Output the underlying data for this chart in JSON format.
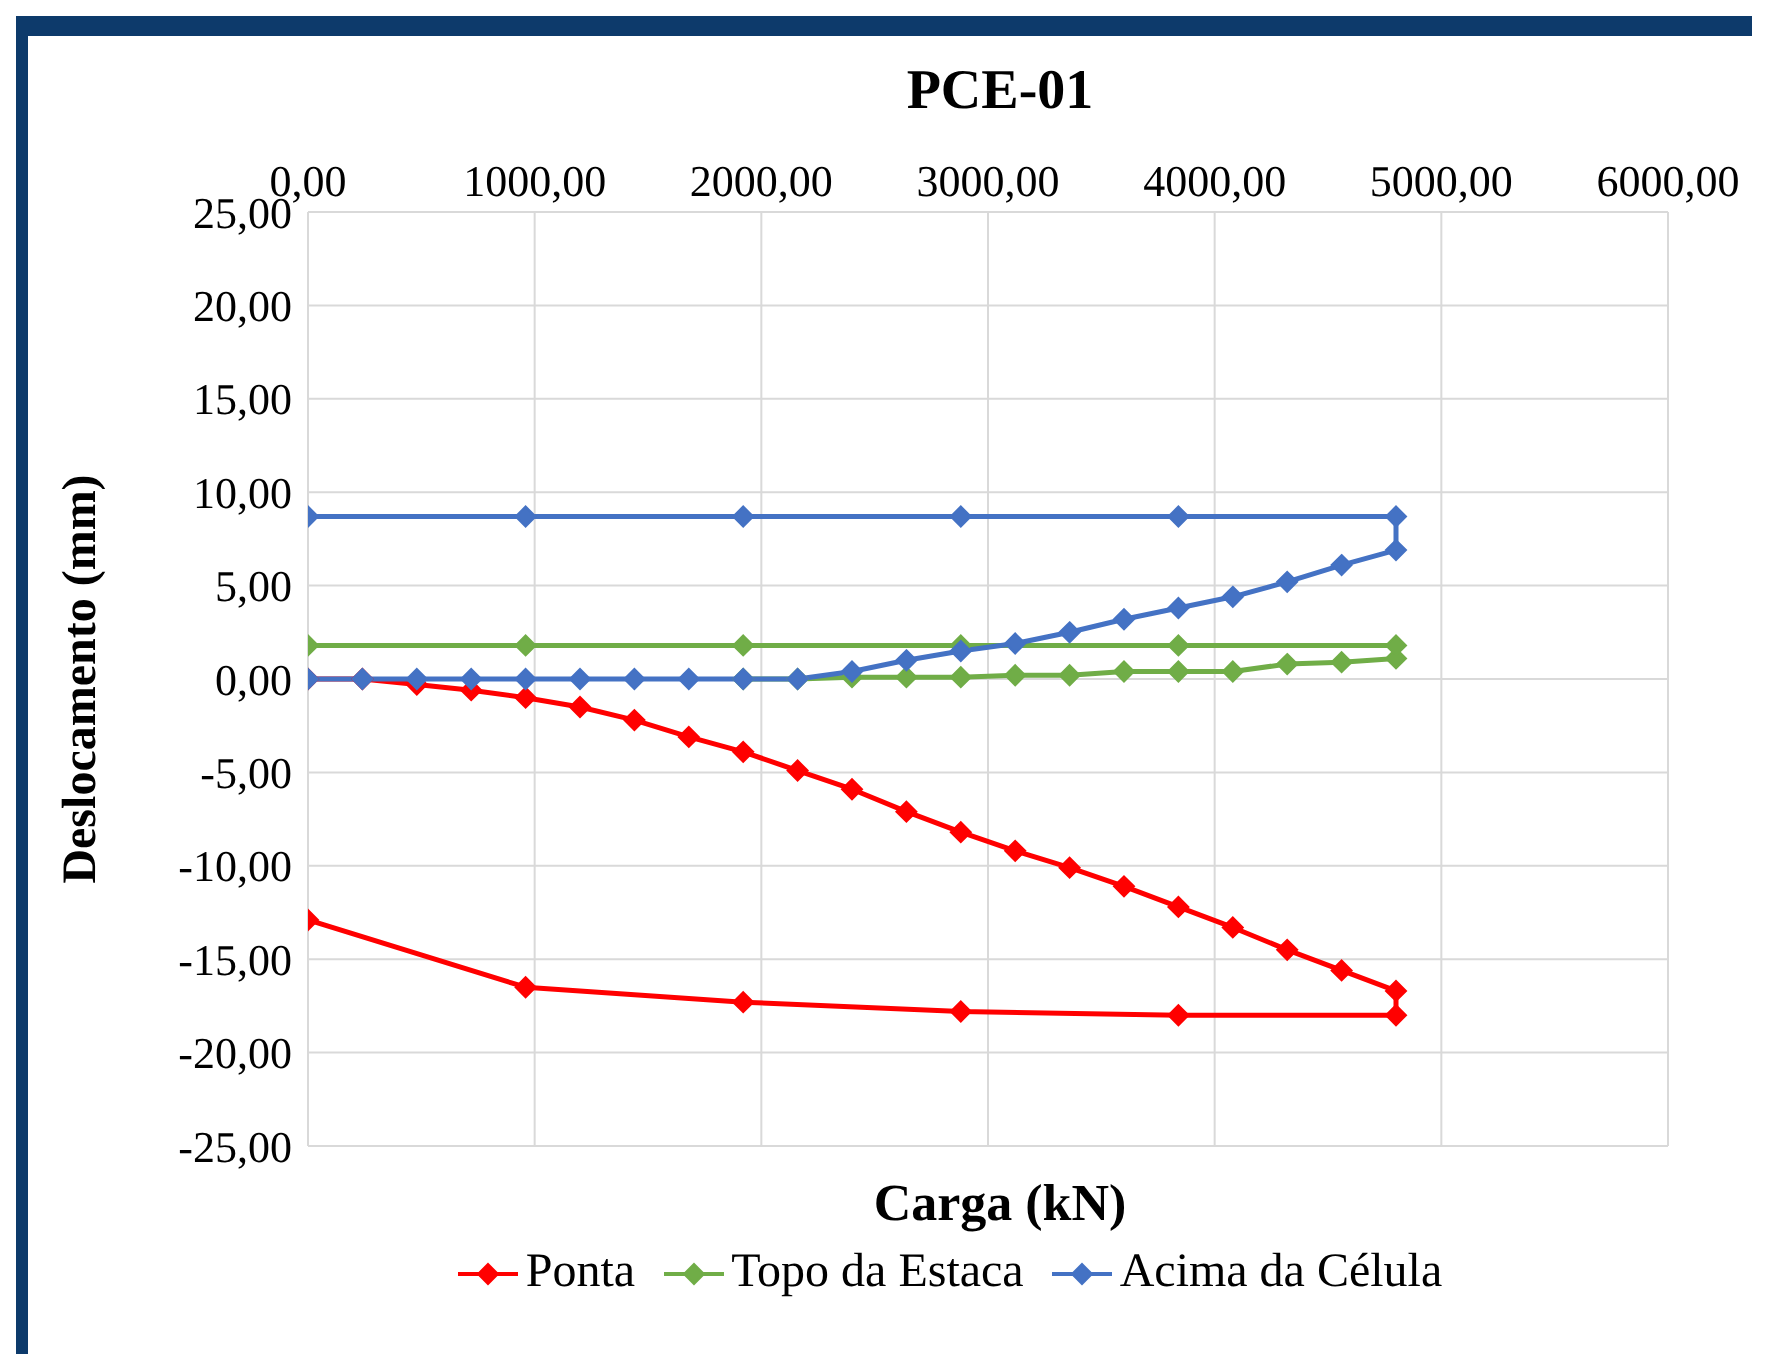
{
  "chart_data": {
    "type": "line",
    "title": "PCE-01",
    "xlabel": "Carga (kN)",
    "ylabel": "Deslocamento (mm)",
    "xlim": [
      0,
      6000
    ],
    "xticks": [
      {
        "value": 0,
        "label": "0,00"
      },
      {
        "value": 1000,
        "label": "1000,00"
      },
      {
        "value": 2000,
        "label": "2000,00"
      },
      {
        "value": 3000,
        "label": "3000,00"
      },
      {
        "value": 4000,
        "label": "4000,00"
      },
      {
        "value": 5000,
        "label": "5000,00"
      },
      {
        "value": 6000,
        "label": "6000,00"
      }
    ],
    "ylim": [
      -25,
      25
    ],
    "yticks": [
      {
        "value": -25,
        "label": "-25,00"
      },
      {
        "value": -20,
        "label": "-20,00"
      },
      {
        "value": -15,
        "label": "-15,00"
      },
      {
        "value": -10,
        "label": "-10,00"
      },
      {
        "value": -5,
        "label": "-5,00"
      },
      {
        "value": 0,
        "label": "0,00"
      },
      {
        "value": 5,
        "label": "5,00"
      },
      {
        "value": 10,
        "label": "10,00"
      },
      {
        "value": 15,
        "label": "15,00"
      },
      {
        "value": 20,
        "label": "20,00"
      },
      {
        "value": 25,
        "label": "25,00"
      }
    ],
    "grid": true,
    "legend": "bottom",
    "marker": "diamond",
    "line_style": "solid",
    "series": [
      {
        "name": "Ponta",
        "color": "#ff0000",
        "x": [
          0,
          240,
          480,
          720,
          960,
          1200,
          1440,
          1680,
          1920,
          2160,
          2400,
          2640,
          2880,
          3120,
          3360,
          3600,
          3840,
          4080,
          4320,
          4560,
          4800,
          4800,
          3840,
          2880,
          1920,
          960,
          0
        ],
        "values": [
          0,
          0,
          -0.3,
          -0.6,
          -1.0,
          -1.5,
          -2.2,
          -3.1,
          -3.9,
          -4.9,
          -5.9,
          -7.1,
          -8.2,
          -9.2,
          -10.1,
          -11.1,
          -12.2,
          -13.3,
          -14.5,
          -15.6,
          -16.7,
          -18.0,
          -18.0,
          -17.8,
          -17.3,
          -16.5,
          -12.9
        ]
      },
      {
        "name": "Topo da Estaca",
        "color": "#70ad47",
        "x": [
          1920,
          2160,
          2400,
          2640,
          2880,
          3120,
          3360,
          3600,
          3840,
          4080,
          4320,
          4560,
          4800,
          4800,
          3840,
          2880,
          1920,
          960,
          0
        ],
        "values": [
          0,
          0,
          0.1,
          0.1,
          0.1,
          0.2,
          0.2,
          0.4,
          0.4,
          0.4,
          0.8,
          0.9,
          1.1,
          1.8,
          1.8,
          1.8,
          1.8,
          1.8,
          1.8
        ]
      },
      {
        "name": "Acima da Célula",
        "color": "#4472c4",
        "x": [
          0,
          240,
          480,
          720,
          960,
          1200,
          1440,
          1680,
          1920,
          2160,
          2400,
          2640,
          2880,
          3120,
          3360,
          3600,
          3840,
          4080,
          4320,
          4560,
          4800,
          4800,
          3840,
          2880,
          1920,
          960,
          0
        ],
        "values": [
          0,
          0,
          0,
          0,
          0,
          0,
          0,
          0,
          0,
          0,
          0.4,
          1.0,
          1.5,
          1.9,
          2.5,
          3.2,
          3.8,
          4.4,
          5.2,
          6.1,
          6.9,
          8.7,
          8.7,
          8.7,
          8.7,
          8.7,
          8.7
        ]
      }
    ]
  }
}
